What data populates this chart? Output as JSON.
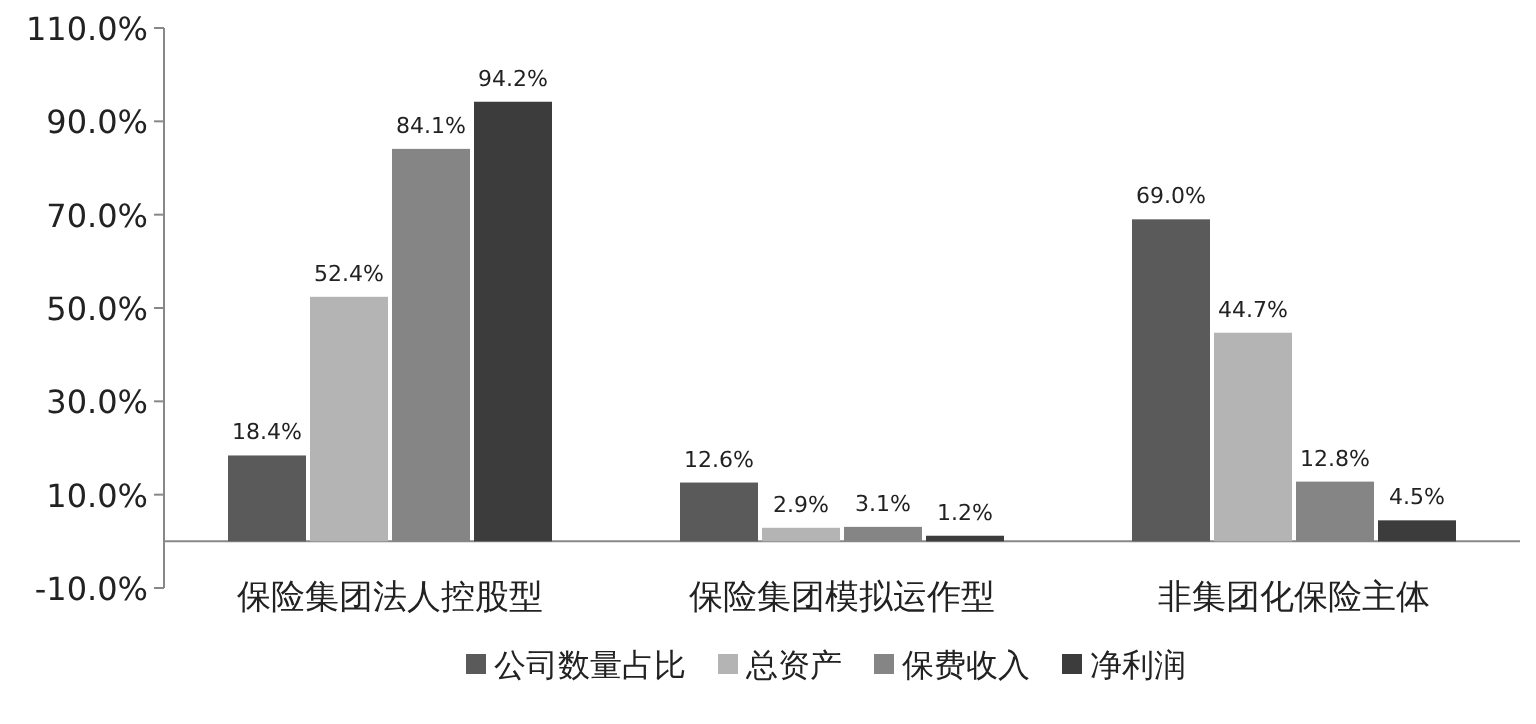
{
  "chart_data": {
    "type": "bar",
    "categories": [
      "保险集团法人控股型",
      "保险集团模拟运作型",
      "非集团化保险主体"
    ],
    "series": [
      {
        "name": "公司数量占比",
        "color": "#5a5a5a",
        "values": [
          18.4,
          12.6,
          69.0
        ],
        "value_labels": [
          "18.4%",
          "12.6%",
          "69.0%"
        ]
      },
      {
        "name": "总资产",
        "color": "#b4b4b4",
        "values": [
          52.4,
          2.9,
          44.7
        ],
        "value_labels": [
          "52.4%",
          "2.9%",
          "44.7%"
        ]
      },
      {
        "name": "保费收入",
        "color": "#858585",
        "values": [
          84.1,
          3.1,
          12.8
        ],
        "value_labels": [
          "84.1%",
          "3.1%",
          "12.8%"
        ]
      },
      {
        "name": "净利润",
        "color": "#3c3c3c",
        "values": [
          94.2,
          1.2,
          4.5
        ],
        "value_labels": [
          "94.2%",
          "1.2%",
          "4.5%"
        ]
      }
    ],
    "ylim": [
      -10,
      110
    ],
    "yticks": [
      {
        "value": -10,
        "label": "-10.0%"
      },
      {
        "value": 10,
        "label": "10.0%"
      },
      {
        "value": 30,
        "label": "30.0%"
      },
      {
        "value": 50,
        "label": "50.0%"
      },
      {
        "value": 70,
        "label": "70.0%"
      },
      {
        "value": 90,
        "label": "90.0%"
      },
      {
        "value": 110,
        "label": "110.0%"
      }
    ],
    "legend": "bottom",
    "grid": false
  }
}
